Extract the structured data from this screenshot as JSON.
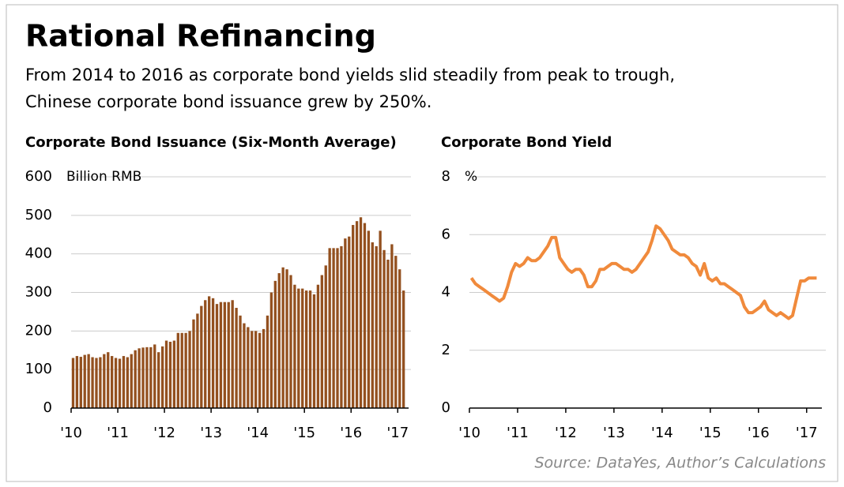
{
  "title": "Rational Refinancing",
  "subtitle": [
    "From 2014 to 2016 as corporate bond yields slid steadily from peak to trough,",
    "Chinese corporate bond issuance grew by 250%."
  ],
  "source": "Source: DataYes, Author’s Calculations",
  "chart_data": [
    {
      "type": "bar",
      "title": "Corporate Bond Issuance (Six-Month Average)",
      "y_unit": "Billion RMB",
      "color": "#93501f",
      "categories": [
        "'10",
        null,
        null,
        null,
        null,
        null,
        null,
        null,
        null,
        null,
        null,
        null,
        "'11",
        null,
        null,
        null,
        null,
        null,
        null,
        null,
        null,
        null,
        null,
        null,
        "'12",
        null,
        null,
        null,
        null,
        null,
        null,
        null,
        null,
        null,
        null,
        null,
        "'13",
        null,
        null,
        null,
        null,
        null,
        null,
        null,
        null,
        null,
        null,
        null,
        "'14",
        null,
        null,
        null,
        null,
        null,
        null,
        null,
        null,
        null,
        null,
        null,
        "'15",
        null,
        null,
        null,
        null,
        null,
        null,
        null,
        null,
        null,
        null,
        null,
        "'16",
        null,
        null,
        null,
        null,
        null,
        null,
        null,
        null,
        null,
        null,
        null,
        "'17",
        null
      ],
      "values": [
        130,
        135,
        133,
        138,
        140,
        132,
        130,
        132,
        140,
        145,
        135,
        130,
        128,
        135,
        132,
        140,
        150,
        155,
        157,
        158,
        158,
        165,
        145,
        160,
        175,
        172,
        175,
        195,
        195,
        195,
        200,
        230,
        245,
        265,
        280,
        290,
        285,
        270,
        275,
        275,
        275,
        280,
        260,
        240,
        220,
        210,
        200,
        200,
        195,
        205,
        240,
        300,
        330,
        350,
        365,
        360,
        345,
        320,
        310,
        310,
        305,
        305,
        295,
        320,
        345,
        370,
        415,
        415,
        415,
        420,
        440,
        445,
        475,
        485,
        495,
        480,
        460,
        430,
        420,
        460,
        410,
        385,
        425,
        395,
        360,
        305
      ],
      "ylim": [
        0,
        600
      ],
      "yticks": [
        0,
        100,
        200,
        300,
        400,
        500,
        600
      ],
      "grid": true
    },
    {
      "type": "line",
      "title": "Corporate Bond Yield",
      "y_unit": "%",
      "color": "#f08a3c",
      "categories": [
        "'10",
        null,
        null,
        null,
        null,
        null,
        null,
        null,
        null,
        null,
        null,
        null,
        "'11",
        null,
        null,
        null,
        null,
        null,
        null,
        null,
        null,
        null,
        null,
        null,
        "'12",
        null,
        null,
        null,
        null,
        null,
        null,
        null,
        null,
        null,
        null,
        null,
        "'13",
        null,
        null,
        null,
        null,
        null,
        null,
        null,
        null,
        null,
        null,
        null,
        "'14",
        null,
        null,
        null,
        null,
        null,
        null,
        null,
        null,
        null,
        null,
        null,
        "'15",
        null,
        null,
        null,
        null,
        null,
        null,
        null,
        null,
        null,
        null,
        null,
        "'16",
        null,
        null,
        null,
        null,
        null,
        null,
        null,
        null,
        null,
        null,
        null,
        "'17",
        null,
        null
      ],
      "values": [
        4.5,
        4.3,
        4.2,
        4.1,
        4.0,
        3.9,
        3.8,
        3.7,
        3.8,
        4.2,
        4.7,
        5.0,
        4.9,
        5.0,
        5.2,
        5.1,
        5.1,
        5.2,
        5.4,
        5.6,
        5.9,
        5.9,
        5.2,
        5.0,
        4.8,
        4.7,
        4.8,
        4.8,
        4.6,
        4.2,
        4.2,
        4.4,
        4.8,
        4.8,
        4.9,
        5.0,
        5.0,
        4.9,
        4.8,
        4.8,
        4.7,
        4.8,
        5.0,
        5.2,
        5.4,
        5.8,
        6.3,
        6.2,
        6.0,
        5.8,
        5.5,
        5.4,
        5.3,
        5.3,
        5.2,
        5.0,
        4.9,
        4.6,
        5.0,
        4.5,
        4.4,
        4.5,
        4.3,
        4.3,
        4.2,
        4.1,
        4.0,
        3.9,
        3.5,
        3.3,
        3.3,
        3.4,
        3.5,
        3.7,
        3.4,
        3.3,
        3.2,
        3.3,
        3.2,
        3.1,
        3.2,
        3.8,
        4.4,
        4.4,
        4.5,
        4.5,
        4.5
      ],
      "ylim": [
        0,
        8
      ],
      "yticks": [
        0,
        2,
        4,
        6,
        8
      ],
      "grid": true
    }
  ]
}
